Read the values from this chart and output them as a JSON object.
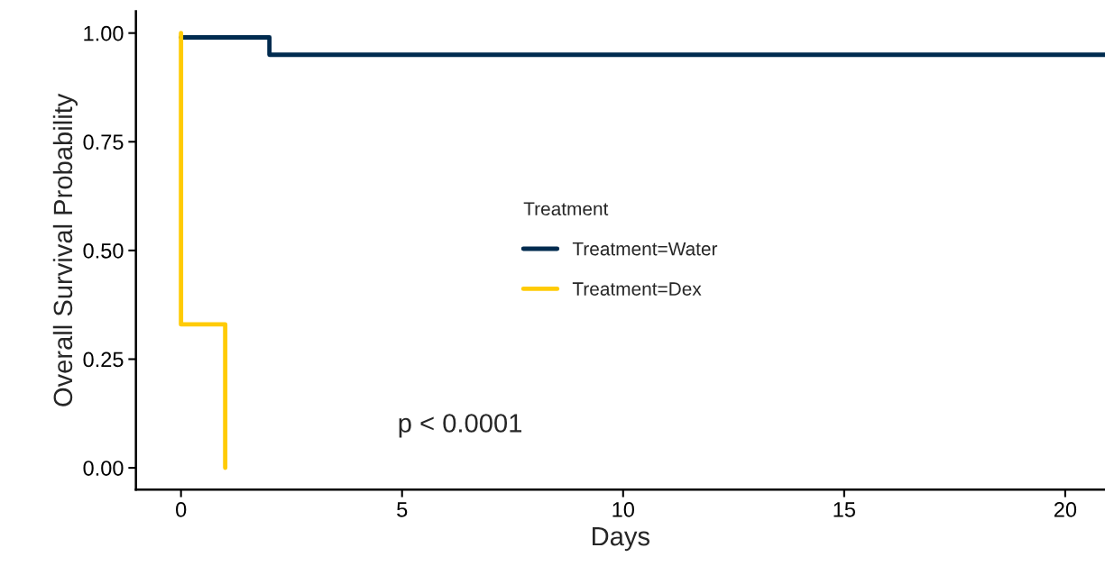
{
  "chart_data": {
    "type": "step",
    "xlabel": "Days",
    "ylabel": "Overall Survival Probability",
    "legend_title": "Treatment",
    "series": [
      {
        "name": "Treatment=Water",
        "color": "#002b4f",
        "x": [
          0,
          2,
          20.9
        ],
        "values": [
          0.99,
          0.95,
          0.95
        ]
      },
      {
        "name": "Treatment=Dex",
        "color": "#ffcb05",
        "x": [
          0,
          0,
          1,
          1
        ],
        "values": [
          1.0,
          0.33,
          0.33,
          0
        ]
      }
    ],
    "xlim": [
      -1.02,
      20.9
    ],
    "xticks": [
      0,
      5,
      10,
      15,
      20
    ],
    "ylim": [
      -0.05,
      1.05
    ],
    "yticks": [
      {
        "value": 0,
        "label": "0.00"
      },
      {
        "value": 0.25,
        "label": "0.25"
      },
      {
        "value": 0.5,
        "label": "0.50"
      },
      {
        "value": 0.75,
        "label": "0.75"
      },
      {
        "value": 1,
        "label": "1.00"
      }
    ],
    "annotations": [
      "p < 0.0001"
    ],
    "grid": false,
    "legend": "center"
  }
}
